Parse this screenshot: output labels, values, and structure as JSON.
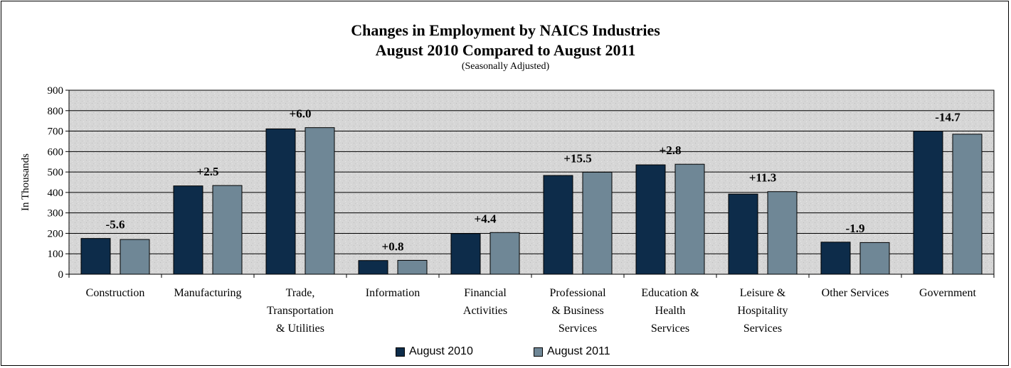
{
  "title": "Changes in Employment by NAICS Industries",
  "subtitle": "August 2010 Compared to August 2011",
  "subtitle2": "(Seasonally Adjusted)",
  "chart_data": {
    "type": "bar",
    "title": "Changes in Employment by NAICS Industries August 2010 Compared to August 2011",
    "subtitle": "(Seasonally Adjusted)",
    "ylabel": "In Thousands",
    "xlabel": "",
    "ylim": [
      0,
      900
    ],
    "yticks": [
      0,
      100,
      200,
      300,
      400,
      500,
      600,
      700,
      800,
      900
    ],
    "grid": true,
    "legend_position": "bottom",
    "categories": [
      [
        "Construction"
      ],
      [
        "Manufacturing"
      ],
      [
        "Trade,",
        "Transportation",
        "& Utilities"
      ],
      [
        "Information"
      ],
      [
        "Financial",
        "Activities"
      ],
      [
        "Professional",
        "& Business",
        "Services"
      ],
      [
        "Education &",
        "Health",
        "Services"
      ],
      [
        "Leisure &",
        "Hospitality",
        "Services"
      ],
      [
        "Other Services"
      ],
      [
        "Government"
      ]
    ],
    "series": [
      {
        "name": "August 2010",
        "color": "#0d2c4a",
        "values": [
          175,
          432,
          711,
          67,
          199,
          483,
          535,
          392,
          157,
          700
        ]
      },
      {
        "name": "August 2011",
        "color": "#6f8796",
        "values": [
          170,
          434,
          717,
          68,
          204,
          499,
          538,
          404,
          155,
          685
        ]
      }
    ],
    "annotations": [
      "-5.6",
      "+2.5",
      "+6.0",
      "+0.8",
      "+4.4",
      "+15.5",
      "+2.8",
      "+11.3",
      "-1.9",
      "-14.7"
    ]
  }
}
